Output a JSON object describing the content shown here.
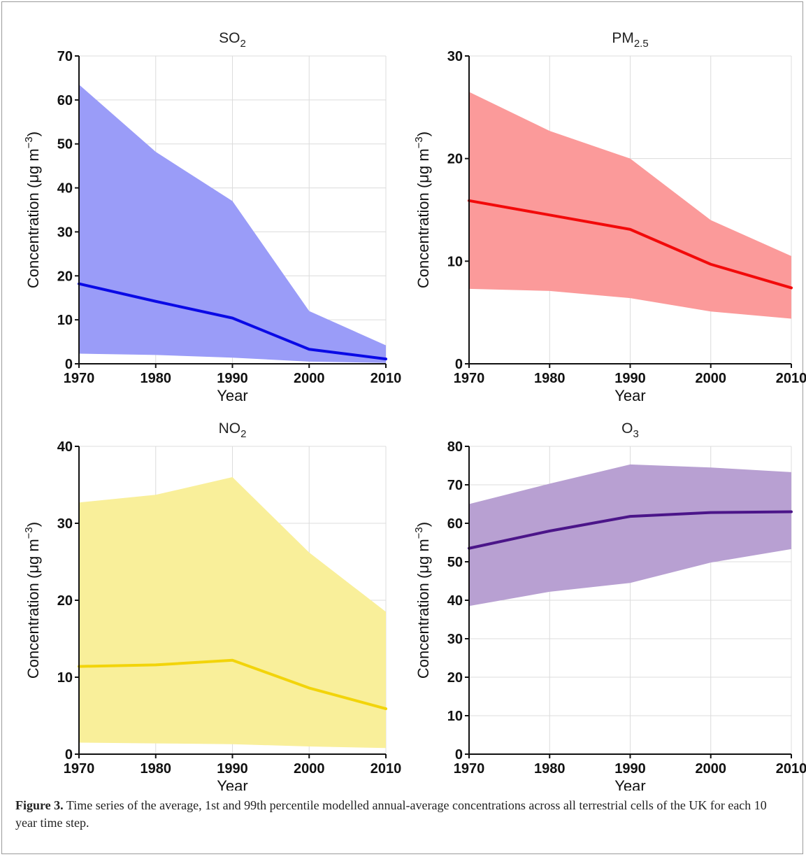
{
  "chart_data": [
    {
      "type": "area",
      "title_main": "SO",
      "title_sub": "2",
      "xlabel": "Year",
      "ylabel_pre": "Concentration (μg m",
      "ylabel_sup": "−3",
      "ylabel_post": ")",
      "x": [
        1970,
        1980,
        1990,
        2000,
        2010
      ],
      "mean": [
        18.2,
        14.2,
        10.4,
        3.3,
        1.1
      ],
      "p1": [
        2.3,
        2.0,
        1.4,
        0.5,
        0.2
      ],
      "p99": [
        63.5,
        48.2,
        37.0,
        12.0,
        4.2
      ],
      "xlim": [
        1970,
        2010
      ],
      "ylim": [
        0,
        70
      ],
      "xticks": [
        1970,
        1980,
        1990,
        2000,
        2010
      ],
      "yticks": [
        0,
        10,
        20,
        30,
        40,
        50,
        60,
        70
      ],
      "line_color": "#0a0ae6",
      "fill_color": "#9a9cf8",
      "grid": true
    },
    {
      "type": "area",
      "title_main": "PM",
      "title_sub": "2.5",
      "xlabel": "Year",
      "ylabel_pre": "Concentration (μg m",
      "ylabel_sup": "−3",
      "ylabel_post": ")",
      "x": [
        1970,
        1980,
        1990,
        2000,
        2010
      ],
      "mean": [
        15.9,
        14.5,
        13.1,
        9.7,
        7.4
      ],
      "p1": [
        7.3,
        7.1,
        6.4,
        5.1,
        4.4
      ],
      "p99": [
        26.5,
        22.7,
        20.0,
        14.0,
        10.5
      ],
      "xlim": [
        1970,
        2010
      ],
      "ylim": [
        0,
        30
      ],
      "xticks": [
        1970,
        1980,
        1990,
        2000,
        2010
      ],
      "yticks": [
        0,
        10,
        20,
        30
      ],
      "line_color": "#f20a0a",
      "fill_color": "#fb9a9a",
      "grid": true
    },
    {
      "type": "area",
      "title_main": "NO",
      "title_sub": "2",
      "xlabel": "Year",
      "ylabel_pre": "Concentration (μg m",
      "ylabel_sup": "−3",
      "ylabel_post": ")",
      "x": [
        1970,
        1980,
        1990,
        2000,
        2010
      ],
      "mean": [
        11.4,
        11.6,
        12.2,
        8.6,
        5.9
      ],
      "p1": [
        1.5,
        1.4,
        1.3,
        1.0,
        0.8
      ],
      "p99": [
        32.7,
        33.7,
        36.0,
        26.2,
        18.5
      ],
      "xlim": [
        1970,
        2010
      ],
      "ylim": [
        0,
        40
      ],
      "xticks": [
        1970,
        1980,
        1990,
        2000,
        2010
      ],
      "yticks": [
        0,
        10,
        20,
        30,
        40
      ],
      "line_color": "#f2d40a",
      "fill_color": "#f9ef9a",
      "grid": true
    },
    {
      "type": "area",
      "title_main": "O",
      "title_sub": "3",
      "xlabel": "Year",
      "ylabel_pre": "Concentration (μg m",
      "ylabel_sup": "−3",
      "ylabel_post": ")",
      "x": [
        1970,
        1980,
        1990,
        2000,
        2010
      ],
      "mean": [
        53.5,
        58.0,
        61.8,
        62.8,
        63.0
      ],
      "p1": [
        38.5,
        42.2,
        44.5,
        49.8,
        53.3
      ],
      "p99": [
        65.0,
        70.3,
        75.3,
        74.5,
        73.3
      ],
      "xlim": [
        1970,
        2010
      ],
      "ylim": [
        0,
        80
      ],
      "xticks": [
        1970,
        1980,
        1990,
        2000,
        2010
      ],
      "yticks": [
        0,
        10,
        20,
        30,
        40,
        50,
        60,
        70,
        80
      ],
      "line_color": "#4b1589",
      "fill_color": "#b8a0d2",
      "grid": true
    }
  ],
  "caption": {
    "label": "Figure 3.",
    "text": " Time series of the average, 1st and 99th percentile modelled annual-average concentrations across all terrestrial cells of the UK for each 10 year time step."
  }
}
